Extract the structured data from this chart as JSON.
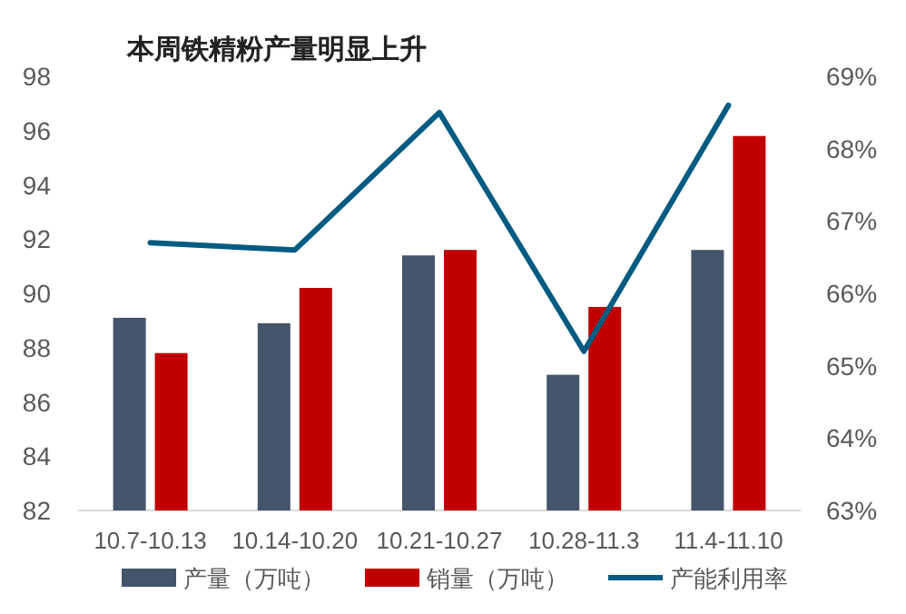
{
  "chart_data": {
    "type": "bar",
    "title": "本周铁精粉产量明显上升",
    "categories": [
      "10.7-10.13",
      "10.14-10.20",
      "10.21-10.27",
      "10.28-11.3",
      "11.4-11.10"
    ],
    "series": [
      {
        "name": "产量（万吨）",
        "color": "#44546a",
        "values": [
          89.1,
          88.9,
          91.4,
          87.0,
          91.6
        ]
      },
      {
        "name": "销量（万吨）",
        "color": "#c00000",
        "values": [
          87.8,
          90.2,
          91.6,
          89.5,
          95.8
        ]
      },
      {
        "name": "产能利用率",
        "type": "line",
        "axis": "y2",
        "color": "#005b82",
        "values": [
          66.7,
          66.6,
          68.5,
          65.2,
          68.6
        ]
      }
    ],
    "ylim": [
      82,
      98
    ],
    "yticks": [
      82,
      84,
      86,
      88,
      90,
      92,
      94,
      96,
      98
    ],
    "y2lim": [
      63,
      69
    ],
    "y2ticks": [
      {
        "value": 63,
        "label": "63%"
      },
      {
        "value": 64,
        "label": "64%"
      },
      {
        "value": 65,
        "label": "65%"
      },
      {
        "value": 66,
        "label": "66%"
      },
      {
        "value": 67,
        "label": "67%"
      },
      {
        "value": 68,
        "label": "68%"
      },
      {
        "value": 69,
        "label": "69%"
      }
    ],
    "grid": false,
    "legend": "bottom"
  }
}
